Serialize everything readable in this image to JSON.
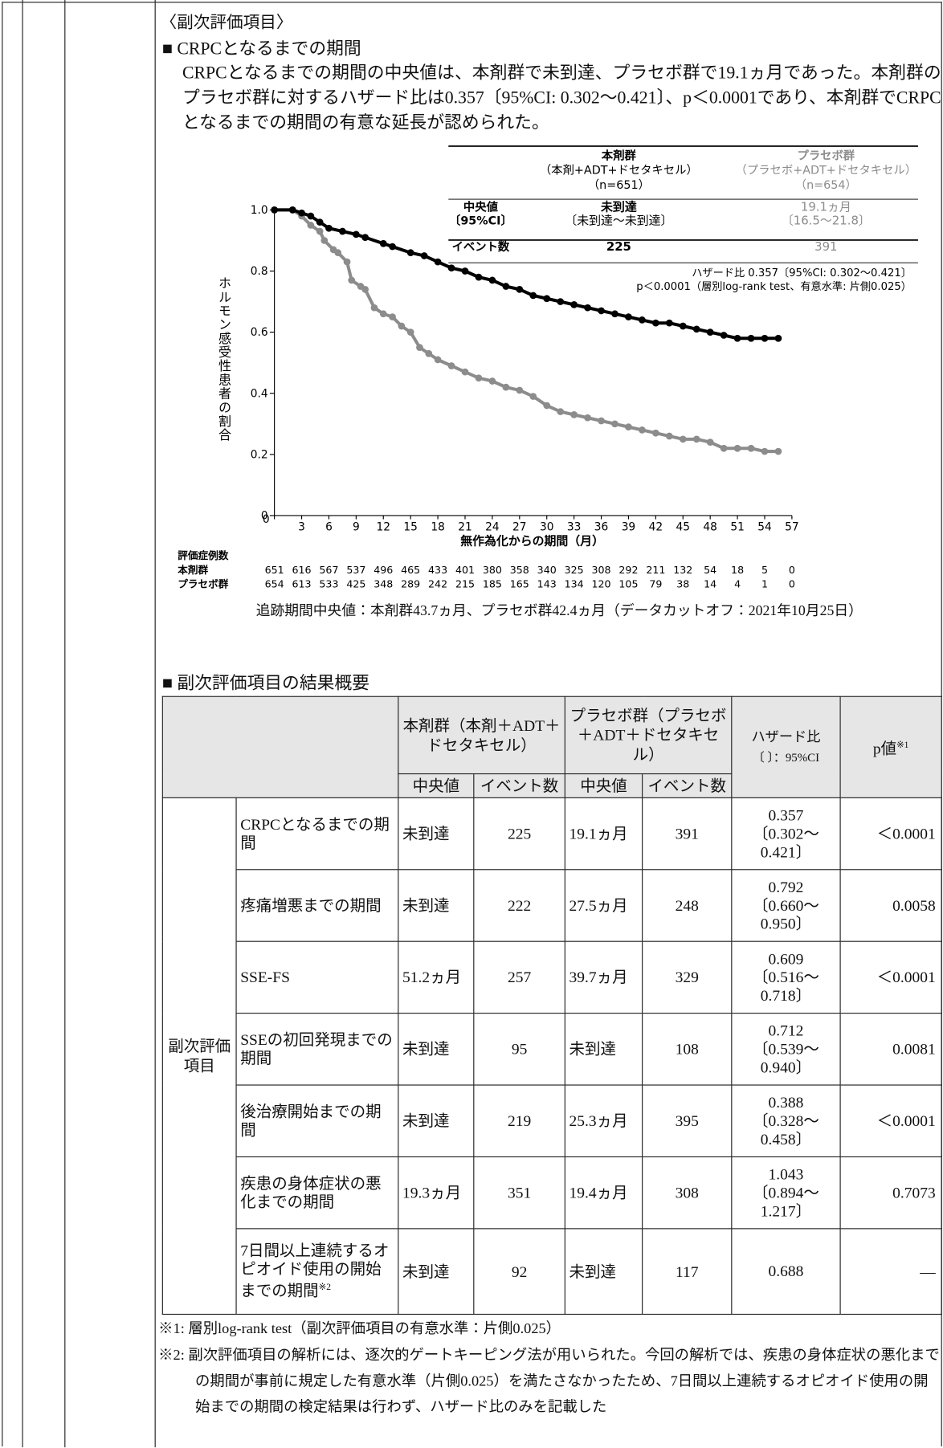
{
  "document": {
    "heading": "〈副次評価項目〉",
    "section1": "■ CRPCとなるまでの期間",
    "paragraph": "CRPCとなるまでの期間の中央値は、本剤群で未到達、プラセボ群で19.1ヵ月であった。本剤群のプラセボ群に対するハザード比は0.357〔95%CI: 0.302～0.421〕、p＜0.0001であり、本剤群でCRPCとなるまでの期間の有意な延長が認められた。",
    "inset_table": {
      "columns": [
        [
          "本剤群",
          "（本剤+ADT+ドセタキセル）",
          "（n=651）"
        ],
        [
          "プラセボ群",
          "（プラセボ+ADT+ドセタキセル）",
          "（n=654）"
        ]
      ],
      "rows": [
        {
          "label": [
            "中央値",
            "〔95%CI〕"
          ],
          "cells": [
            [
              "未到達",
              "〔未到達～未到達〕"
            ],
            [
              "19.1ヵ月",
              "〔16.5～21.8〕"
            ]
          ]
        },
        {
          "label": [
            "イベント数"
          ],
          "cells": [
            [
              "225"
            ],
            [
              "391"
            ]
          ]
        }
      ]
    },
    "hazard_lines": [
      "ハザード比 0.357〔95%CI: 0.302～0.421〕",
      "p＜0.0001（層別log-rank test、有意水準: 片側0.025）"
    ],
    "risk_table": {
      "title": "評価症例数",
      "groups": [
        {
          "label": "本剤群",
          "values": [
            651,
            616,
            567,
            537,
            496,
            465,
            433,
            401,
            380,
            358,
            340,
            325,
            308,
            292,
            211,
            132,
            54,
            18,
            5,
            0
          ]
        },
        {
          "label": "プラセボ群",
          "values": [
            654,
            613,
            533,
            425,
            348,
            289,
            242,
            215,
            185,
            165,
            143,
            134,
            120,
            105,
            79,
            38,
            14,
            4,
            1,
            0
          ]
        }
      ]
    },
    "follow_up": "追跡期間中央値：本剤群43.7ヵ月、プラセボ群42.4ヵ月（データカットオフ：2021年10月25日）",
    "section2": "■ 副次評価項目の結果概要",
    "table": {
      "col_groups": [
        "本剤群（本剤＋ADT＋ドセタキセル）",
        "プラセボ群（プラセボ＋ADT＋ドセタキセル）"
      ],
      "hazard_header": [
        "ハザード比",
        "〔 〕：95%CI"
      ],
      "p_header": {
        "text": "p値",
        "note": "※1"
      },
      "sub_headers": [
        "中央値",
        "イベント数",
        "中央値",
        "イベント数"
      ],
      "row_group": "副次評価項目",
      "rows": [
        {
          "name": "CRPCとなるまでの期間",
          "cells": [
            "未到達",
            "225",
            "19.1ヵ月",
            "391"
          ],
          "hr": [
            "0.357",
            "〔0.302～",
            "0.421〕"
          ],
          "p": "＜0.0001"
        },
        {
          "name": "疼痛増悪までの期間",
          "cells": [
            "未到達",
            "222",
            "27.5ヵ月",
            "248"
          ],
          "hr": [
            "0.792",
            "〔0.660～",
            "0.950〕"
          ],
          "p": "0.0058"
        },
        {
          "name": "SSE-FS",
          "cells": [
            "51.2ヵ月",
            "257",
            "39.7ヵ月",
            "329"
          ],
          "hr": [
            "0.609",
            "〔0.516～",
            "0.718〕"
          ],
          "p": "＜0.0001"
        },
        {
          "name": "SSEの初回発現までの期間",
          "cells": [
            "未到達",
            "95",
            "未到達",
            "108"
          ],
          "hr": [
            "0.712",
            "〔0.539～",
            "0.940〕"
          ],
          "p": "0.0081"
        },
        {
          "name": "後治療開始までの期間",
          "cells": [
            "未到達",
            "219",
            "25.3ヵ月",
            "395"
          ],
          "hr": [
            "0.388",
            "〔0.328～",
            "0.458〕"
          ],
          "p": "＜0.0001"
        },
        {
          "name": "疾患の身体症状の悪化までの期間",
          "cells": [
            "19.3ヵ月",
            "351",
            "19.4ヵ月",
            "308"
          ],
          "hr": [
            "1.043",
            "〔0.894～",
            "1.217〕"
          ],
          "p": "0.7073"
        },
        {
          "name": "7日間以上連続するオピオイド使用の開始までの期間",
          "note": "※2",
          "cells": [
            "未到達",
            "92",
            "未到達",
            "117"
          ],
          "hr": [
            "0.688"
          ],
          "p": "—"
        }
      ]
    },
    "footnotes": [
      "※1: 層別log-rank test（副次評価項目の有意水準：片側0.025）",
      "※2: 副次評価項目の解析には、逐次的ゲートキーピング法が用いられた。今回の解析では、疾患の身体症状の悪化までの期間が事前に規定した有意水準（片側0.025）を満たさなかったため、7日間以上連続するオピオイド使用の開始までの期間の検定結果は行わず、ハザード比のみを記載した"
    ]
  },
  "chart_data": {
    "type": "line",
    "ylabel": "ホルモン感受性患者の割合",
    "xlabel": "無作為化からの期間（月）",
    "xlim": [
      0,
      57
    ],
    "ylim": [
      0,
      1
    ],
    "xticks": [
      0,
      3,
      6,
      9,
      12,
      15,
      18,
      21,
      24,
      27,
      30,
      33,
      36,
      39,
      42,
      45,
      48,
      51,
      54,
      57
    ],
    "yticks": [
      0,
      0.2,
      0.4,
      0.6,
      0.8,
      {
        "value": 1,
        "label": "1.0"
      }
    ],
    "series": [
      {
        "color": "#000000",
        "x": [
          0,
          2,
          3,
          4,
          5,
          6,
          7.5,
          9,
          10,
          12,
          13,
          15,
          16.5,
          18,
          19.5,
          21,
          22.5,
          24,
          25.5,
          27,
          28.5,
          30,
          31.5,
          33,
          34.5,
          36,
          37.5,
          39,
          40.5,
          42,
          43.5,
          45,
          46.5,
          48,
          49.5,
          51,
          52.5,
          54,
          55.5
        ],
        "values": [
          1,
          1,
          0.99,
          0.98,
          0.96,
          0.94,
          0.93,
          0.92,
          0.91,
          0.89,
          0.88,
          0.86,
          0.85,
          0.83,
          0.81,
          0.8,
          0.78,
          0.77,
          0.75,
          0.74,
          0.72,
          0.71,
          0.7,
          0.69,
          0.68,
          0.67,
          0.66,
          0.65,
          0.64,
          0.63,
          0.63,
          0.62,
          0.61,
          0.6,
          0.59,
          0.58,
          0.58,
          0.58,
          0.58
        ]
      },
      {
        "color": "#8c8c8c",
        "x": [
          0,
          2,
          3,
          4,
          5,
          5.5,
          6.5,
          7,
          8,
          8.5,
          9.5,
          10,
          11,
          12,
          13,
          14,
          15,
          16,
          17,
          18,
          19.5,
          21,
          22.5,
          24,
          25.5,
          27,
          28.5,
          30,
          31.5,
          33,
          34.5,
          36,
          37.5,
          39,
          40.5,
          42,
          43.5,
          45,
          46.5,
          48,
          49.5,
          51,
          52.5,
          54,
          55.5
        ],
        "values": [
          1,
          1,
          0.98,
          0.95,
          0.93,
          0.9,
          0.87,
          0.86,
          0.83,
          0.77,
          0.75,
          0.74,
          0.68,
          0.66,
          0.65,
          0.62,
          0.6,
          0.55,
          0.53,
          0.51,
          0.49,
          0.47,
          0.45,
          0.44,
          0.42,
          0.41,
          0.39,
          0.36,
          0.34,
          0.33,
          0.32,
          0.31,
          0.3,
          0.29,
          0.28,
          0.27,
          0.26,
          0.25,
          0.25,
          0.24,
          0.22,
          0.22,
          0.22,
          0.21,
          0.21
        ]
      }
    ]
  }
}
